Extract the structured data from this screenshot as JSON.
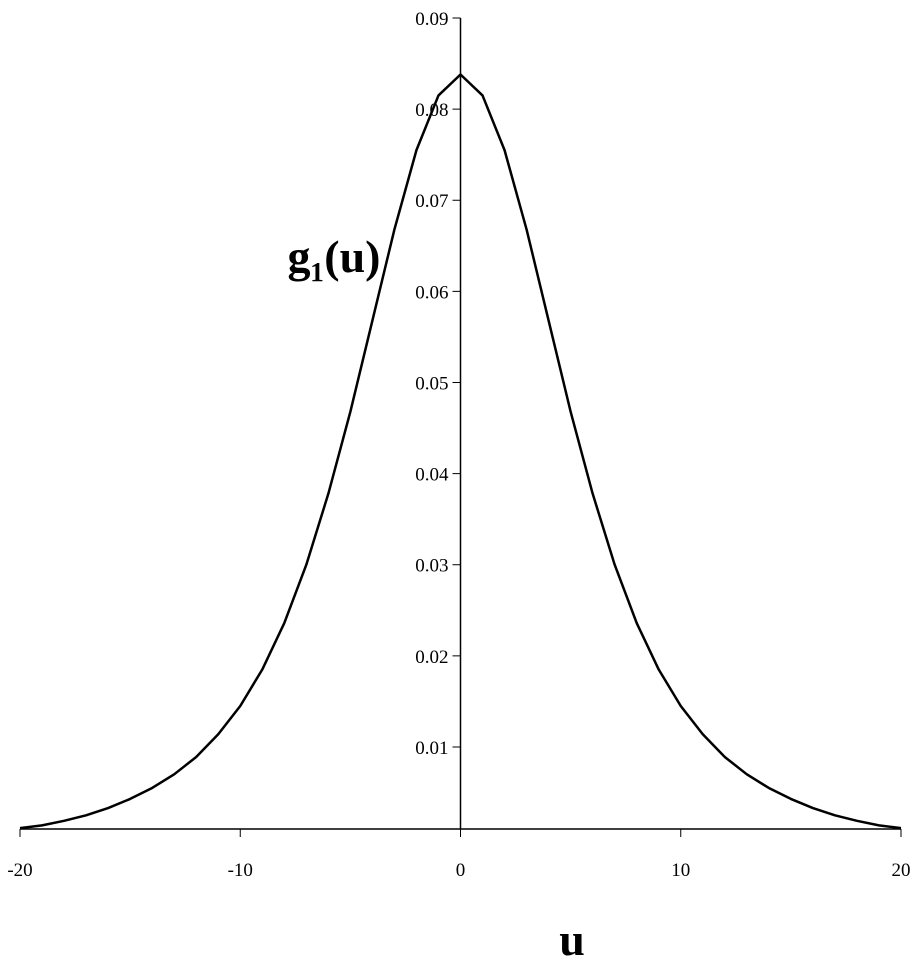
{
  "chart_data": {
    "type": "line",
    "xlabel": "u",
    "ylabel": "g₁(u)",
    "x": [
      -20,
      -19,
      -18,
      -17,
      -16,
      -15,
      -14,
      -13,
      -12,
      -11,
      -10,
      -9,
      -8,
      -7,
      -6,
      -5,
      -4,
      -3,
      -2,
      -1,
      0,
      1,
      2,
      3,
      4,
      5,
      6,
      7,
      8,
      9,
      10,
      11,
      12,
      13,
      14,
      15,
      16,
      17,
      18,
      19,
      20
    ],
    "series": [
      {
        "color": "#000000",
        "values": [
          0.0011,
          0.0014,
          0.0019,
          0.0025,
          0.0033,
          0.0043,
          0.0055,
          0.007,
          0.0089,
          0.0114,
          0.0145,
          0.0185,
          0.0236,
          0.03,
          0.0378,
          0.0468,
          0.0568,
          0.0668,
          0.0755,
          0.0815,
          0.0838,
          0.0815,
          0.0755,
          0.0668,
          0.0568,
          0.0468,
          0.0378,
          0.03,
          0.0236,
          0.0185,
          0.0145,
          0.0114,
          0.0089,
          0.007,
          0.0055,
          0.0043,
          0.0033,
          0.0025,
          0.0019,
          0.0014,
          0.0011
        ]
      }
    ],
    "xlim": [
      -20,
      20
    ],
    "xticks": [
      -20,
      -10,
      0,
      10,
      20
    ],
    "ylim": [
      0.001,
      0.09
    ],
    "yticks": [
      0.01,
      0.02,
      0.03,
      0.04,
      0.05,
      0.06,
      0.07,
      0.08,
      0.09
    ]
  }
}
